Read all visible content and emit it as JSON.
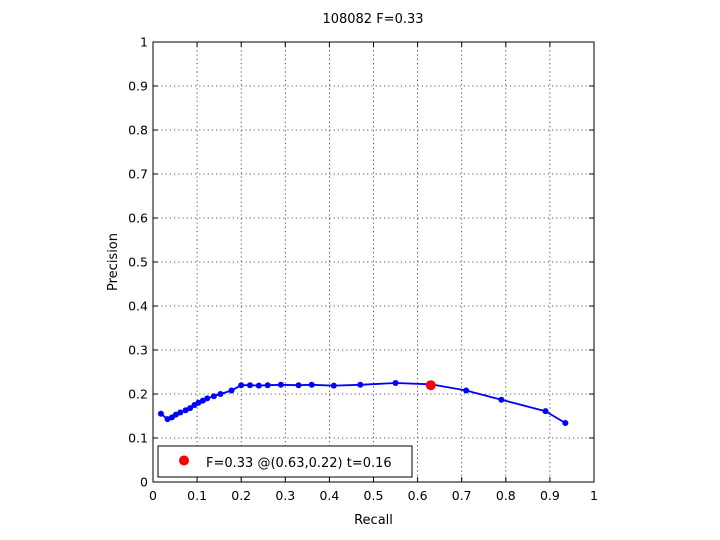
{
  "chart_data": {
    "type": "line",
    "title": "108082 F=0.33",
    "xlabel": "Recall",
    "ylabel": "Precision",
    "xlim": [
      0,
      1
    ],
    "ylim": [
      0,
      1
    ],
    "grid": true,
    "xticks": [
      "0",
      "0.1",
      "0.2",
      "0.3",
      "0.4",
      "0.5",
      "0.6",
      "0.7",
      "0.8",
      "0.9",
      "1"
    ],
    "yticks": [
      "0",
      "0.1",
      "0.2",
      "0.3",
      "0.4",
      "0.5",
      "0.6",
      "0.7",
      "0.8",
      "0.9",
      "1"
    ],
    "series": [
      {
        "color": "#0000ff",
        "x": [
          0.018,
          0.033,
          0.043,
          0.052,
          0.062,
          0.074,
          0.084,
          0.094,
          0.103,
          0.113,
          0.123,
          0.138,
          0.153,
          0.178,
          0.2,
          0.22,
          0.24,
          0.26,
          0.29,
          0.33,
          0.36,
          0.41,
          0.47,
          0.55,
          0.63,
          0.71,
          0.79,
          0.89,
          0.935
        ],
        "y": [
          0.155,
          0.143,
          0.147,
          0.153,
          0.158,
          0.163,
          0.168,
          0.175,
          0.18,
          0.185,
          0.19,
          0.195,
          0.2,
          0.208,
          0.22,
          0.22,
          0.219,
          0.22,
          0.221,
          0.22,
          0.221,
          0.219,
          0.221,
          0.225,
          0.222,
          0.208,
          0.187,
          0.161,
          0.134
        ]
      }
    ],
    "highlight": {
      "x": 0.63,
      "y": 0.22,
      "color": "#ff0000"
    },
    "legend": {
      "position": "bottom-left",
      "label": "F=0.33 @(0.63,0.22) t=0.16"
    }
  }
}
